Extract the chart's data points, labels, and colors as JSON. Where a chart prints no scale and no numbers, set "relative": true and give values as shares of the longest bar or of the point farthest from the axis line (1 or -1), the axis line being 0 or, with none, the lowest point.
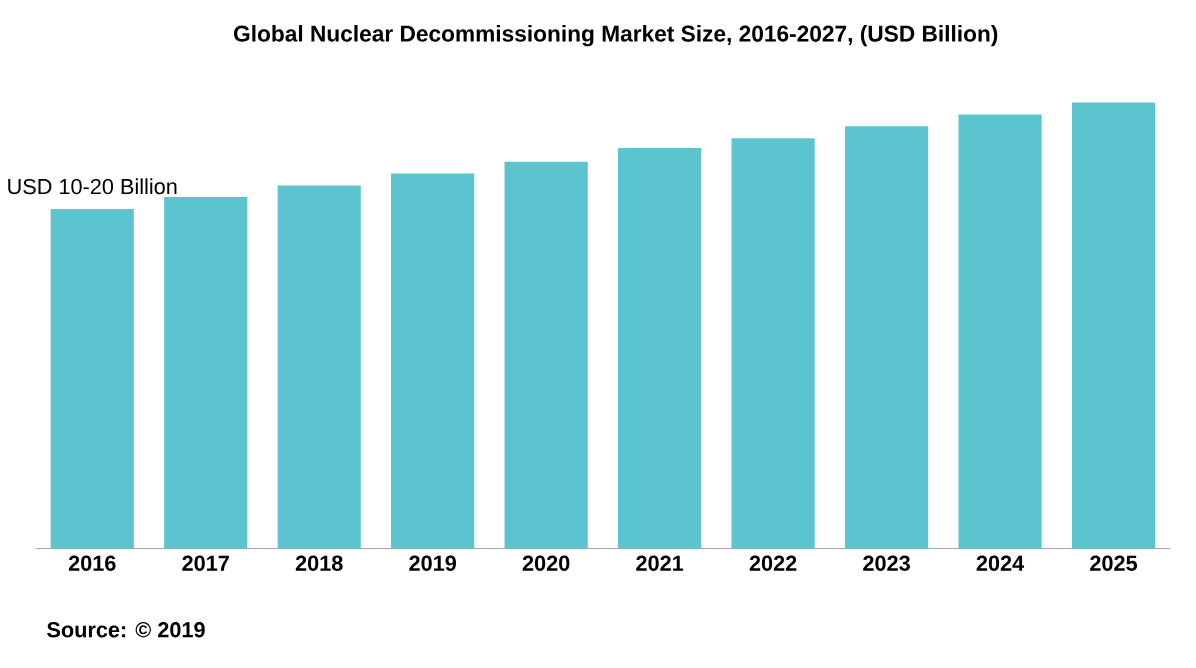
{
  "chart_data": {
    "type": "bar",
    "title": "Global  Nuclear Decommissioning Market Size, 2016-2027, (USD Billion)",
    "categories": [
      "2016",
      "2017",
      "2018",
      "2019",
      "2020",
      "2021",
      "2022",
      "2023",
      "2024",
      "2025"
    ],
    "values": [
      0.761,
      0.788,
      0.814,
      0.841,
      0.867,
      0.898,
      0.92,
      0.947,
      0.973,
      1
    ],
    "color": "#5bc4cf",
    "relative": true,
    "annotations": [
      {
        "text": "USD 10-20 Billion",
        "x": "2016",
        "y": 0.761
      },
      "Source: © 2019"
    ]
  }
}
